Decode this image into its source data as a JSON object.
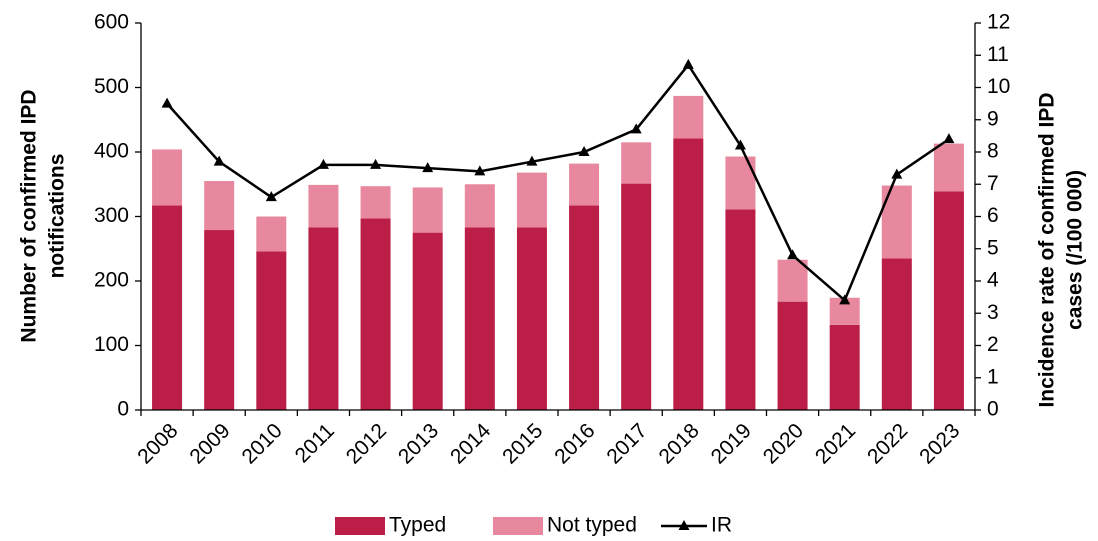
{
  "chart_data": {
    "type": "bar",
    "stacked": true,
    "y_label": [
      "Number of confirmed IPD",
      "notifications"
    ],
    "y2_label": [
      "Incidence rate of confirmed IPD",
      "cases  (/100 000)"
    ],
    "categories": [
      "2008",
      "2009",
      "2010",
      "2011",
      "2012",
      "2013",
      "2014",
      "2015",
      "2016",
      "2017",
      "2018",
      "2019",
      "2020",
      "2021",
      "2022",
      "2023"
    ],
    "series": [
      {
        "name": "Typed",
        "type": "bar",
        "color": "#bb1e47",
        "values": [
          317,
          279,
          246,
          283,
          297,
          275,
          283,
          283,
          317,
          351,
          421,
          311,
          168,
          132,
          235,
          339
        ]
      },
      {
        "name": "Not typed",
        "type": "bar",
        "color": "#e8889e",
        "values": [
          87,
          76,
          54,
          66,
          50,
          70,
          67,
          85,
          65,
          64,
          66,
          82,
          65,
          42,
          113,
          74
        ]
      },
      {
        "name": "IR",
        "type": "line",
        "axis": "y2",
        "color": "#000000",
        "marker": "triangle",
        "values": [
          9.5,
          7.7,
          6.6,
          7.6,
          7.6,
          7.5,
          7.4,
          7.7,
          8.0,
          8.7,
          10.7,
          8.2,
          4.8,
          3.4,
          7.3,
          8.4
        ]
      }
    ],
    "ylim": [
      0,
      600
    ],
    "yticks": [
      0,
      100,
      200,
      300,
      400,
      500,
      600
    ],
    "y2lim": [
      0,
      12
    ],
    "y2ticks": [
      0,
      1,
      2,
      3,
      4,
      5,
      6,
      7,
      8,
      9,
      10,
      11,
      12
    ],
    "grid": false,
    "legend": "bottom"
  }
}
